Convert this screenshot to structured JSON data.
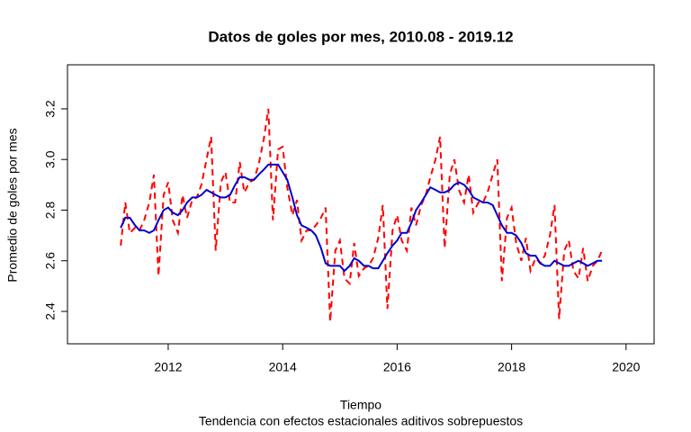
{
  "chart_data": {
    "type": "line",
    "title": "Datos de goles por mes, 2010.08 - 2019.12",
    "xlabel": "Tiempo",
    "ylabel": "Promedio de goles por mes",
    "subtitle": "Tendencia con efectos estacionales aditivos sobrepuestos",
    "x": [
      2011.17,
      2011.25,
      2011.33,
      2011.42,
      2011.5,
      2011.58,
      2011.67,
      2011.75,
      2011.83,
      2011.92,
      2012.0,
      2012.08,
      2012.17,
      2012.25,
      2012.33,
      2012.42,
      2012.5,
      2012.58,
      2012.67,
      2012.75,
      2012.83,
      2012.92,
      2013.0,
      2013.08,
      2013.17,
      2013.25,
      2013.33,
      2013.42,
      2013.5,
      2013.58,
      2013.67,
      2013.75,
      2013.83,
      2013.92,
      2014.0,
      2014.08,
      2014.17,
      2014.25,
      2014.33,
      2014.42,
      2014.5,
      2014.58,
      2014.67,
      2014.75,
      2014.83,
      2014.92,
      2015.0,
      2015.08,
      2015.17,
      2015.25,
      2015.33,
      2015.42,
      2015.5,
      2015.58,
      2015.67,
      2015.75,
      2015.83,
      2015.92,
      2016.0,
      2016.08,
      2016.17,
      2016.25,
      2016.33,
      2016.42,
      2016.5,
      2016.58,
      2016.67,
      2016.75,
      2016.83,
      2016.92,
      2017.0,
      2017.08,
      2017.17,
      2017.25,
      2017.33,
      2017.42,
      2017.5,
      2017.58,
      2017.67,
      2017.75,
      2017.83,
      2017.92,
      2018.0,
      2018.08,
      2018.17,
      2018.25,
      2018.33,
      2018.42,
      2018.5,
      2018.58,
      2018.67,
      2018.75,
      2018.83,
      2018.92,
      2019.0,
      2019.08,
      2019.17,
      2019.25,
      2019.33,
      2019.42,
      2019.5,
      2019.58
    ],
    "series": [
      {
        "color": "#ff0000",
        "linestyle": "dashed",
        "values": [
          2.66,
          2.83,
          2.71,
          2.73,
          2.72,
          2.76,
          2.83,
          2.94,
          2.54,
          2.86,
          2.91,
          2.76,
          2.71,
          2.86,
          2.77,
          2.84,
          2.85,
          2.9,
          3.0,
          3.09,
          2.64,
          2.91,
          2.95,
          2.83,
          2.83,
          2.99,
          2.87,
          2.91,
          2.92,
          2.98,
          3.08,
          3.2,
          2.76,
          3.04,
          3.05,
          2.89,
          2.78,
          2.84,
          2.68,
          2.72,
          2.72,
          2.74,
          2.77,
          2.81,
          2.36,
          2.64,
          2.68,
          2.53,
          2.51,
          2.67,
          2.54,
          2.57,
          2.58,
          2.61,
          2.69,
          2.82,
          2.41,
          2.72,
          2.78,
          2.68,
          2.64,
          2.81,
          2.74,
          2.82,
          2.86,
          2.93,
          3.0,
          3.09,
          2.65,
          2.94,
          3.0,
          2.88,
          2.83,
          2.94,
          2.79,
          2.83,
          2.83,
          2.87,
          2.94,
          3.0,
          2.52,
          2.77,
          2.81,
          2.67,
          2.6,
          2.69,
          2.56,
          2.61,
          2.59,
          2.62,
          2.7,
          2.82,
          2.37,
          2.64,
          2.68,
          2.56,
          2.53,
          2.65,
          2.52,
          2.58,
          2.6,
          2.64
        ]
      },
      {
        "color": "#0000cd",
        "linestyle": "solid",
        "values": [
          2.73,
          2.77,
          2.77,
          2.74,
          2.72,
          2.72,
          2.71,
          2.72,
          2.76,
          2.8,
          2.81,
          2.79,
          2.78,
          2.8,
          2.83,
          2.85,
          2.85,
          2.86,
          2.88,
          2.87,
          2.86,
          2.85,
          2.85,
          2.86,
          2.9,
          2.93,
          2.93,
          2.92,
          2.92,
          2.94,
          2.96,
          2.98,
          2.98,
          2.98,
          2.95,
          2.92,
          2.85,
          2.78,
          2.74,
          2.73,
          2.72,
          2.7,
          2.65,
          2.59,
          2.58,
          2.58,
          2.58,
          2.56,
          2.58,
          2.61,
          2.6,
          2.58,
          2.58,
          2.57,
          2.57,
          2.6,
          2.63,
          2.66,
          2.68,
          2.71,
          2.71,
          2.75,
          2.8,
          2.83,
          2.86,
          2.89,
          2.88,
          2.87,
          2.87,
          2.88,
          2.9,
          2.91,
          2.9,
          2.88,
          2.85,
          2.84,
          2.83,
          2.83,
          2.82,
          2.78,
          2.74,
          2.71,
          2.71,
          2.7,
          2.67,
          2.63,
          2.62,
          2.62,
          2.59,
          2.58,
          2.58,
          2.6,
          2.59,
          2.58,
          2.58,
          2.59,
          2.6,
          2.59,
          2.58,
          2.59,
          2.6,
          2.6
        ]
      }
    ],
    "xlim": [
      2010.24,
      2020.49
    ],
    "ylim": [
      2.272,
      3.374
    ],
    "xticks": [
      2012,
      2014,
      2016,
      2018,
      2020
    ],
    "yticks": [
      2.4,
      2.6,
      2.8,
      {
        "value": 3,
        "label": "3.0"
      },
      3.2
    ]
  }
}
